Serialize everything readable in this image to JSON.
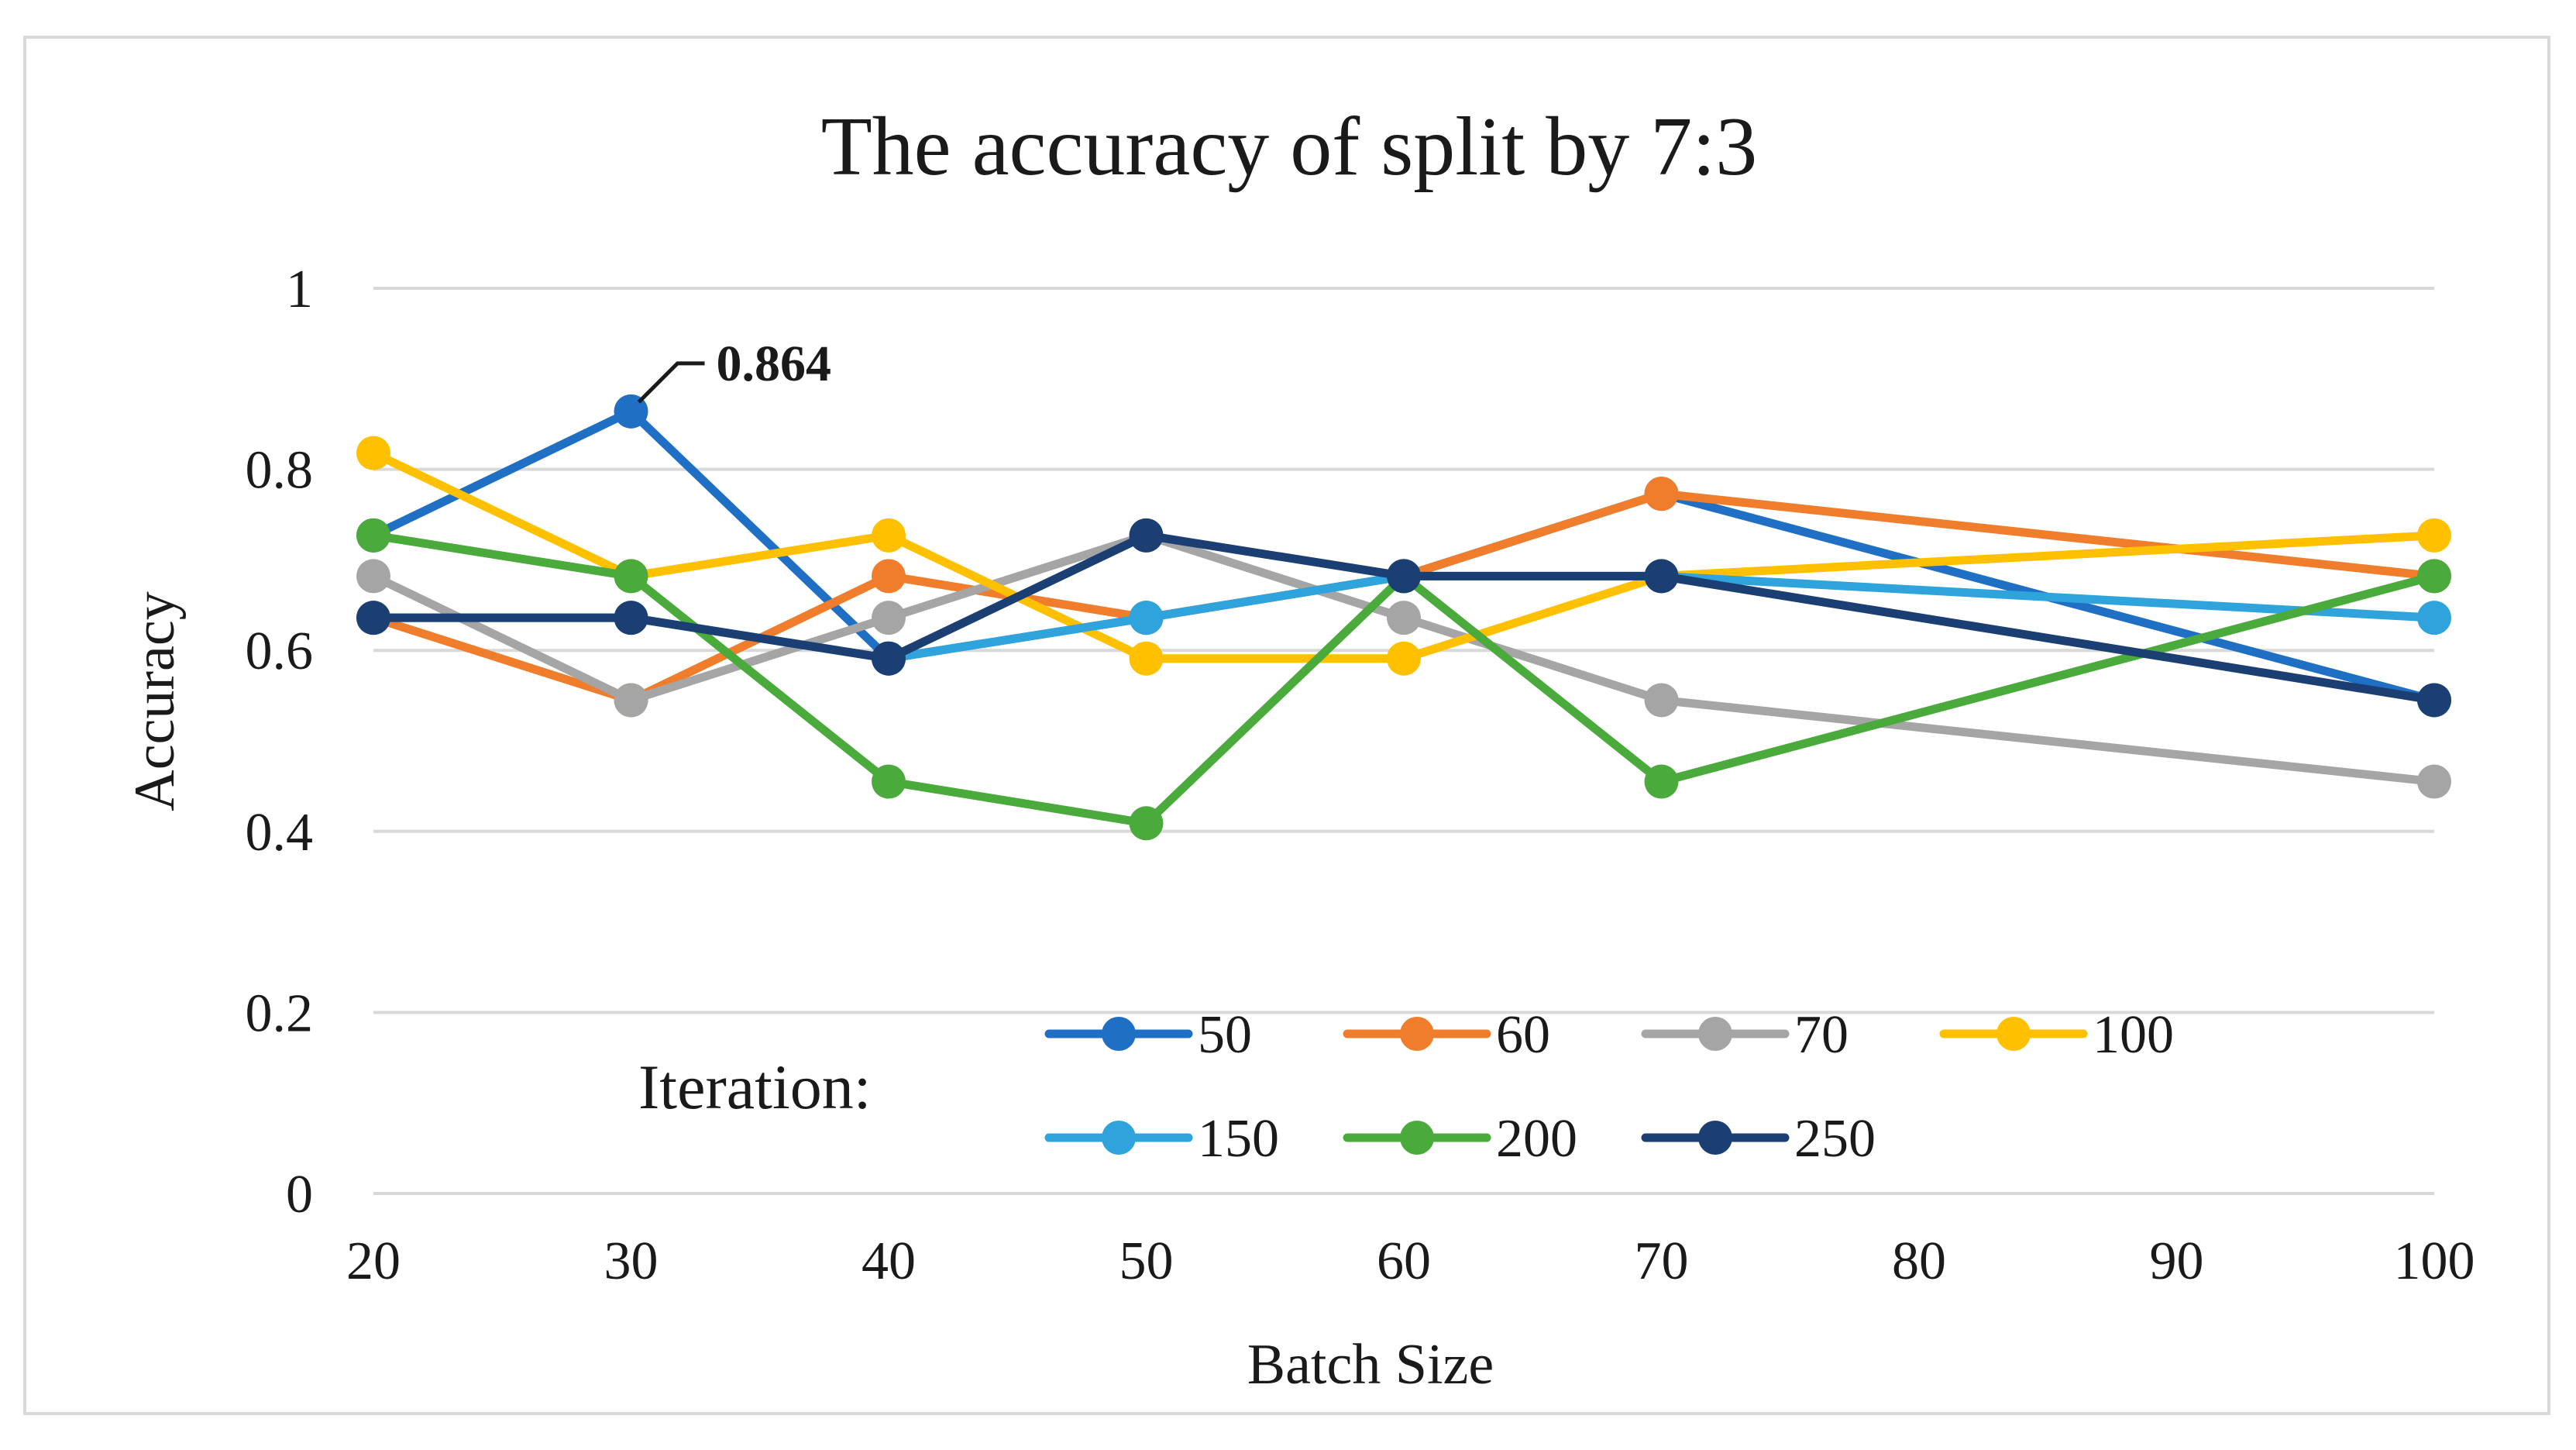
{
  "chart_data": {
    "type": "line",
    "title": "The accuracy of split by 7:3",
    "xlabel": "Batch Size",
    "ylabel": "Accuracy",
    "x_ticks": [
      "20",
      "30",
      "40",
      "50",
      "60",
      "70",
      "80",
      "90",
      "100"
    ],
    "y_ticks": [
      "0",
      "0.2",
      "0.4",
      "0.6",
      "0.8",
      "1"
    ],
    "xlim": [
      20,
      100
    ],
    "ylim": [
      0,
      1
    ],
    "grid": true,
    "legend_title": "Iteration:",
    "legend_position": "bottom-center",
    "series": [
      {
        "name": "50",
        "color": "#1f6fc5",
        "x": [
          20,
          30,
          40,
          50,
          60,
          70,
          100
        ],
        "values": [
          0.727,
          0.864,
          0.591,
          0.636,
          0.682,
          0.773,
          0.545
        ]
      },
      {
        "name": "60",
        "color": "#f07d2c",
        "x": [
          20,
          30,
          40,
          50,
          60,
          70,
          100
        ],
        "values": [
          0.636,
          0.545,
          0.682,
          0.636,
          0.682,
          0.773,
          0.682
        ]
      },
      {
        "name": "70",
        "color": "#a5a5a5",
        "x": [
          20,
          30,
          40,
          50,
          60,
          70,
          100
        ],
        "values": [
          0.682,
          0.545,
          0.636,
          0.727,
          0.636,
          0.545,
          0.455
        ]
      },
      {
        "name": "100",
        "color": "#ffc000",
        "x": [
          20,
          30,
          40,
          50,
          60,
          70,
          100
        ],
        "values": [
          0.818,
          0.682,
          0.727,
          0.591,
          0.591,
          0.682,
          0.727
        ]
      },
      {
        "name": "150",
        "color": "#2ea3dc",
        "x": [
          20,
          30,
          40,
          50,
          60,
          70,
          100
        ],
        "values": [
          0.636,
          0.636,
          0.591,
          0.636,
          0.682,
          0.682,
          0.636
        ]
      },
      {
        "name": "200",
        "color": "#4aaa3c",
        "x": [
          20,
          30,
          40,
          50,
          60,
          70,
          100
        ],
        "values": [
          0.727,
          0.682,
          0.455,
          0.409,
          0.682,
          0.455,
          0.682
        ]
      },
      {
        "name": "250",
        "color": "#1b3f73",
        "x": [
          20,
          30,
          40,
          50,
          60,
          70,
          100
        ],
        "values": [
          0.636,
          0.636,
          0.591,
          0.727,
          0.682,
          0.682,
          0.545
        ]
      }
    ],
    "annotations": [
      {
        "series": "50",
        "x": 30,
        "y": 0.864,
        "text": "0.864"
      }
    ]
  }
}
